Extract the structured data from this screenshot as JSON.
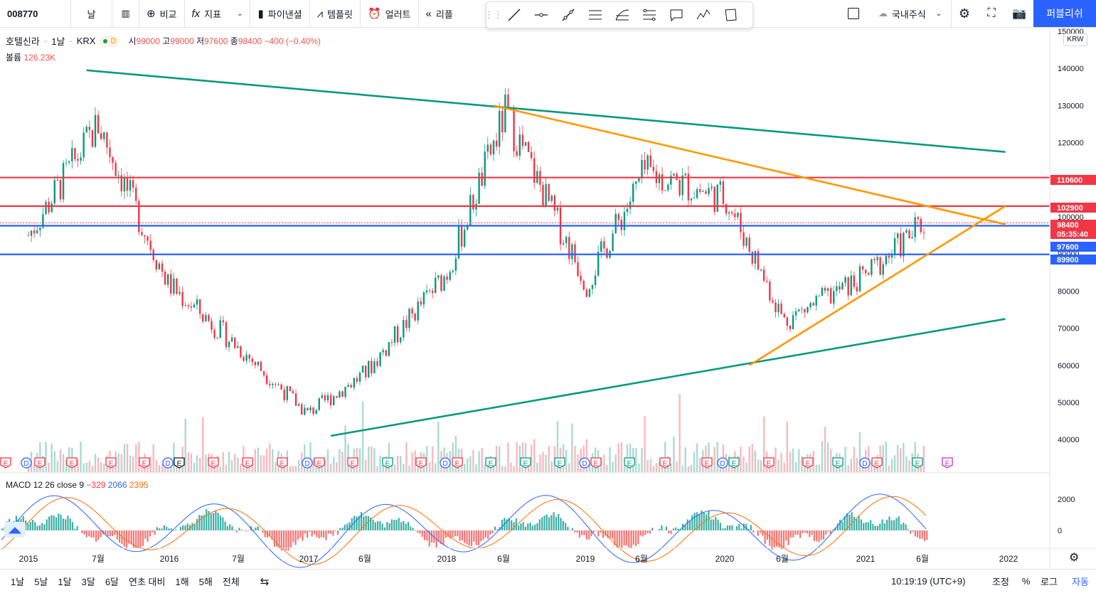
{
  "toolbar": {
    "symbol": "008770",
    "interval": "날",
    "compare": "비교",
    "indicators": "지표",
    "financials": "파이낸셜",
    "templates": "템플릿",
    "alert": "얼러트",
    "replay": "리플",
    "market": "국내주식",
    "publish": "퍼블리쉬"
  },
  "legend": {
    "name": "호텔신라",
    "interval": "1날",
    "exchange": "KRX",
    "open_label": "시",
    "open": "99000",
    "high_label": "고",
    "high": "99000",
    "low_label": "저",
    "low": "97600",
    "close_label": "종",
    "close": "98400",
    "change": "−400 (−0.40%)",
    "badge": "D",
    "volume_label": "볼륨",
    "volume": "126.23K"
  },
  "macd_legend": {
    "name": "MACD",
    "params": "12 26 close 9",
    "v1": "−329",
    "v2": "2066",
    "v3": "2395"
  },
  "price_axis": {
    "currency": "KRW",
    "ticks": [
      "150000",
      "140000",
      "130000",
      "120000",
      "110000",
      "100000",
      "90000",
      "80000",
      "70000",
      "60000",
      "50000",
      "40000"
    ],
    "macd_ticks": [
      "2000",
      "0"
    ]
  },
  "time_axis": {
    "ticks": [
      "2015",
      "7월",
      "2016",
      "7월",
      "2017",
      "6월",
      "2018",
      "6월",
      "2019",
      "6월",
      "2020",
      "6월",
      "2021",
      "6월",
      "2022"
    ]
  },
  "price_labels": [
    {
      "text": "110600",
      "color": "#f23645"
    },
    {
      "text": "102900",
      "color": "#f23645"
    },
    {
      "text": "98400",
      "color": "#f23645"
    },
    {
      "text": "05:35:40",
      "color": "#f23645"
    },
    {
      "text": "97600",
      "color": "#2962ff"
    },
    {
      "text": "89900",
      "color": "#2962ff"
    }
  ],
  "bottom": {
    "ranges": [
      "1날",
      "5날",
      "1달",
      "3달",
      "6달",
      "연초 대비",
      "1해",
      "5해",
      "전체"
    ],
    "clock": "10:19:19 (UTC+9)",
    "adjust": "조정",
    "percent": "%",
    "log": "로그",
    "auto": "자동"
  },
  "chart_data": {
    "type": "line",
    "title": "호텔신라 · 1날 · KRX",
    "x": [
      "2015-01",
      "2015-07",
      "2016-01",
      "2016-07",
      "2017-01",
      "2017-06",
      "2018-01",
      "2018-06",
      "2019-01",
      "2019-06",
      "2020-01",
      "2020-06",
      "2021-01",
      "2021-06"
    ],
    "series": [
      {
        "name": "호텔신라",
        "values": [
          95000,
          125000,
          82000,
          65000,
          47000,
          58000,
          85000,
          128000,
          82000,
          112000,
          105000,
          72000,
          84000,
          98400
        ]
      }
    ],
    "xlabel": "",
    "ylabel": "",
    "ylim": [
      35000,
      150000
    ],
    "horizontal_levels": [
      110600,
      102900,
      97600,
      89900
    ],
    "trendlines": [
      {
        "color": "#089981",
        "from": [
          "2015-06",
          139500
        ],
        "to": [
          "2022-01",
          117500
        ]
      },
      {
        "color": "#089981",
        "from": [
          "2017-03",
          41000
        ],
        "to": [
          "2022-01",
          72500
        ]
      },
      {
        "color": "#ff9800",
        "from": [
          "2018-05",
          130000
        ],
        "to": [
          "2022-01",
          98000
        ]
      },
      {
        "color": "#ff9800",
        "from": [
          "2020-03",
          60000
        ],
        "to": [
          "2022-01",
          102900
        ]
      }
    ],
    "grid": false,
    "legend": "top-left",
    "colors": {
      "up": "#089981",
      "down": "#f23645"
    }
  }
}
